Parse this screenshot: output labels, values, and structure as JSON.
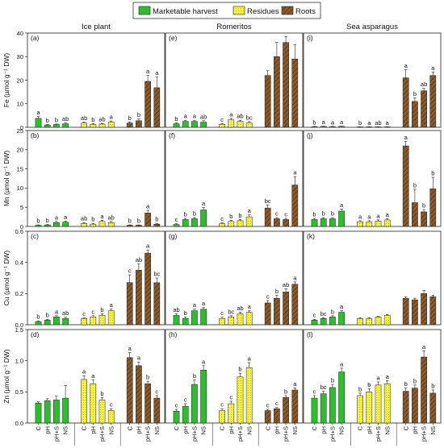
{
  "legend": [
    {
      "label": "Marketable harvest",
      "color": "#2bbf2b",
      "pattern": "solid"
    },
    {
      "label": "Residues",
      "color": "#f5f23a",
      "pattern": "dots"
    },
    {
      "label": "Roots",
      "color": "#8b5a2b",
      "pattern": "hatch"
    }
  ],
  "columns": [
    "Ice plant",
    "Romeritos",
    "Sea asparagus"
  ],
  "xcats": [
    "C",
    "pH",
    "pH+S",
    "NS"
  ],
  "chart_data": {
    "type": "bar",
    "grid": false,
    "legend_position": "top-center",
    "groups": [
      "Marketable harvest",
      "Residues",
      "Roots"
    ],
    "treatments": [
      "C",
      "pH",
      "pH+S",
      "NS"
    ],
    "rows": [
      {
        "element": "Fe",
        "ylabel": "Fe  (µmol g⁻¹ DW)",
        "ylim": [
          0,
          40
        ],
        "ticks": [
          0,
          10,
          20,
          30,
          40
        ],
        "panels": [
          {
            "tag": "(a)",
            "data": [
              {
                "values": [
                  3.8,
                  1.0,
                  1.2,
                  1.5
                ],
                "errors": [
                  0.8,
                  0.2,
                  0.2,
                  0.3
                ],
                "letters": [
                  "a",
                  "b",
                  "b",
                  "ab"
                ]
              },
              {
                "values": [
                  1.8,
                  1.3,
                  1.4,
                  2.2
                ],
                "errors": [
                  0.4,
                  0.3,
                  0.3,
                  0.5
                ],
                "letters": [
                  "ab",
                  "b",
                  "ab",
                  "a"
                ]
              },
              {
                "values": [
                  1.8,
                  2.8,
                  19.5,
                  16.8
                ],
                "errors": [
                  0.5,
                  0.8,
                  2.5,
                  4.5
                ],
                "letters": [
                  "b",
                  "b",
                  "a",
                  "a"
                ]
              }
            ]
          },
          {
            "tag": "(e)",
            "data": [
              {
                "values": [
                  1.5,
                  2.5,
                  2.5,
                  2.2
                ],
                "errors": [
                  0.4,
                  0.5,
                  0.5,
                  0.6
                ],
                "letters": [
                  "b",
                  "a",
                  "a",
                  "ab"
                ]
              },
              {
                "values": [
                  1.3,
                  3.2,
                  2.5,
                  2.0
                ],
                "errors": [
                  0.3,
                  0.6,
                  0.5,
                  0.4
                ],
                "letters": [
                  "c",
                  "a",
                  "ab",
                  "bc"
                ]
              },
              {
                "values": [
                  22.0,
                  30.0,
                  36.0,
                  29.0
                ],
                "errors": [
                  2.0,
                  6.0,
                  2.5,
                  6.0
                ],
                "letters": [
                  "",
                  "",
                  "",
                  ""
                ]
              }
            ]
          },
          {
            "tag": "(i)",
            "data": [
              {
                "values": [
                  0.3,
                  0.4,
                  0.3,
                  0.4
                ],
                "errors": [
                  0.1,
                  0.1,
                  0.1,
                  0.1
                ],
                "letters": [
                  "b",
                  "a",
                  "a",
                  "a"
                ]
              },
              {
                "values": [
                  0.2,
                  0.2,
                  0.2,
                  0.2
                ],
                "errors": [
                  0.05,
                  0.05,
                  0.05,
                  0.05
                ],
                "letters": [
                  "b",
                  "a",
                  "ab",
                  "a"
                ]
              },
              {
                "values": [
                  21.0,
                  11.0,
                  15.5,
                  22.0
                ],
                "errors": [
                  3.5,
                  1.5,
                  1.0,
                  1.5
                ],
                "letters": [
                  "a",
                  "b",
                  "ab",
                  "a"
                ]
              }
            ]
          }
        ]
      },
      {
        "element": "Mn",
        "ylabel": "Mn  (µmol g⁻¹ DW)",
        "ylim": [
          0,
          25
        ],
        "ticks": [
          0,
          5,
          10,
          15,
          20,
          25
        ],
        "panels": [
          {
            "tag": "(b)",
            "data": [
              {
                "values": [
                  0.3,
                  0.4,
                  1.0,
                  1.1
                ],
                "errors": [
                  0.1,
                  0.1,
                  0.3,
                  0.3
                ],
                "letters": [
                  "b",
                  "b",
                  "a",
                  "a"
                ]
              },
              {
                "values": [
                  0.8,
                  0.6,
                  1.3,
                  1.0
                ],
                "errors": [
                  0.2,
                  0.2,
                  0.3,
                  0.3
                ],
                "letters": [
                  "ab",
                  "b",
                  "a",
                  "ab"
                ]
              },
              {
                "values": [
                  0.3,
                  0.3,
                  3.5,
                  0.6
                ],
                "errors": [
                  0.1,
                  0.1,
                  0.7,
                  0.2
                ],
                "letters": [
                  "b",
                  "b",
                  "a",
                  "b"
                ]
              }
            ]
          },
          {
            "tag": "(f)",
            "data": [
              {
                "values": [
                  0.5,
                  1.8,
                  2.0,
                  4.3
                ],
                "errors": [
                  0.2,
                  0.3,
                  0.3,
                  0.6
                ],
                "letters": [
                  "c",
                  "b",
                  "b",
                  "a"
                ]
              },
              {
                "values": [
                  0.7,
                  1.3,
                  1.5,
                  2.5
                ],
                "errors": [
                  0.2,
                  0.3,
                  0.3,
                  0.5
                ],
                "letters": [
                  "c",
                  "b",
                  "b",
                  "a"
                ]
              },
              {
                "values": [
                  4.8,
                  2.0,
                  1.8,
                  10.8
                ],
                "errors": [
                  0.8,
                  0.3,
                  0.3,
                  2.2
                ],
                "letters": [
                  "bc",
                  "c",
                  "c",
                  "a"
                ]
              }
            ]
          },
          {
            "tag": "(j)",
            "data": [
              {
                "values": [
                  1.8,
                  2.0,
                  2.0,
                  4.0
                ],
                "errors": [
                  0.3,
                  0.3,
                  0.3,
                  0.5
                ],
                "letters": [
                  "b",
                  "b",
                  "b",
                  "a"
                ]
              },
              {
                "values": [
                  1.2,
                  1.2,
                  1.4,
                  1.7
                ],
                "errors": [
                  0.3,
                  0.3,
                  0.3,
                  0.3
                ],
                "letters": [
                  "a",
                  "a",
                  "a",
                  "a"
                ]
              },
              {
                "values": [
                  21.0,
                  6.2,
                  3.8,
                  9.8
                ],
                "errors": [
                  1.2,
                  3.5,
                  0.6,
                  3.0
                ],
                "letters": [
                  "a",
                  "b",
                  "b",
                  "b"
                ]
              }
            ]
          }
        ]
      },
      {
        "element": "Cu",
        "ylabel": "Cu  (µmol g⁻¹ DW)",
        "ylim": [
          0,
          0.6
        ],
        "ticks": [
          0.0,
          0.2,
          0.4,
          0.6
        ],
        "panels": [
          {
            "tag": "(c)",
            "data": [
              {
                "values": [
                  0.02,
                  0.03,
                  0.05,
                  0.04
                ],
                "errors": [
                  0.005,
                  0.005,
                  0.008,
                  0.008
                ],
                "letters": [
                  "b",
                  "b",
                  "a",
                  "ab"
                ]
              },
              {
                "values": [
                  0.04,
                  0.05,
                  0.06,
                  0.09
                ],
                "errors": [
                  0.005,
                  0.008,
                  0.01,
                  0.01
                ],
                "letters": [
                  "c",
                  "c",
                  "b",
                  "a"
                ]
              },
              {
                "values": [
                  0.27,
                  0.35,
                  0.46,
                  0.27
                ],
                "errors": [
                  0.05,
                  0.04,
                  0.02,
                  0.03
                ],
                "letters": [
                  "c",
                  "ab",
                  "a",
                  "bc"
                ]
              }
            ]
          },
          {
            "tag": "(g)",
            "data": [
              {
                "values": [
                  0.06,
                  0.04,
                  0.09,
                  0.1
                ],
                "errors": [
                  0.01,
                  0.01,
                  0.01,
                  0.01
                ],
                "letters": [
                  "ab",
                  "b",
                  "a",
                  "a"
                ]
              },
              {
                "values": [
                  0.04,
                  0.05,
                  0.07,
                  0.08
                ],
                "errors": [
                  0.008,
                  0.008,
                  0.01,
                  0.01
                ],
                "letters": [
                  "c",
                  "bc",
                  "ab",
                  "a"
                ]
              },
              {
                "values": [
                  0.14,
                  0.17,
                  0.21,
                  0.26
                ],
                "errors": [
                  0.015,
                  0.02,
                  0.02,
                  0.015
                ],
                "letters": [
                  "c",
                  "b",
                  "ab",
                  "a"
                ]
              }
            ]
          },
          {
            "tag": "(k)",
            "data": [
              {
                "values": [
                  0.03,
                  0.04,
                  0.05,
                  0.08
                ],
                "errors": [
                  0.005,
                  0.005,
                  0.008,
                  0.01
                ],
                "letters": [
                  "c",
                  "bc",
                  "b",
                  "a"
                ]
              },
              {
                "values": [
                  0.04,
                  0.04,
                  0.05,
                  0.06
                ],
                "errors": [
                  0.005,
                  0.005,
                  0.005,
                  0.005
                ],
                "letters": [
                  "",
                  "",
                  "",
                  ""
                ]
              },
              {
                "values": [
                  0.17,
                  0.16,
                  0.2,
                  0.18
                ],
                "errors": [
                  0.01,
                  0.01,
                  0.02,
                  0.01
                ],
                "letters": [
                  "",
                  "",
                  "",
                  ""
                ]
              }
            ]
          }
        ]
      },
      {
        "element": "Zn",
        "ylabel": "Zn  (µmol g⁻¹ DW)",
        "ylim": [
          0,
          1.5
        ],
        "ticks": [
          0.0,
          0.5,
          1.0,
          1.5
        ],
        "panels": [
          {
            "tag": "(d)",
            "data": [
              {
                "values": [
                  0.32,
                  0.36,
                  0.37,
                  0.4
                ],
                "errors": [
                  0.02,
                  0.03,
                  0.06,
                  0.2
                ],
                "letters": [
                  "",
                  "",
                  "",
                  ""
                ]
              },
              {
                "values": [
                  0.7,
                  0.63,
                  0.37,
                  0.2
                ],
                "errors": [
                  0.06,
                  0.06,
                  0.04,
                  0.03
                ],
                "letters": [
                  "a",
                  "a",
                  "b",
                  "c"
                ]
              },
              {
                "values": [
                  1.05,
                  0.92,
                  0.63,
                  0.4
                ],
                "errors": [
                  0.08,
                  0.06,
                  0.04,
                  0.04
                ],
                "letters": [
                  "a",
                  "a",
                  "b",
                  "c"
                ]
              }
            ]
          },
          {
            "tag": "(h)",
            "data": [
              {
                "values": [
                  0.19,
                  0.27,
                  0.62,
                  0.85
                ],
                "errors": [
                  0.03,
                  0.04,
                  0.07,
                  0.07
                ],
                "letters": [
                  "c",
                  "c",
                  "b",
                  "a"
                ]
              },
              {
                "values": [
                  0.2,
                  0.31,
                  0.74,
                  0.89
                ],
                "errors": [
                  0.03,
                  0.04,
                  0.06,
                  0.08
                ],
                "letters": [
                  "c",
                  "c",
                  "b",
                  "a"
                ]
              },
              {
                "values": [
                  0.2,
                  0.23,
                  0.41,
                  0.53
                ],
                "errors": [
                  0.02,
                  0.02,
                  0.03,
                  0.03
                ],
                "letters": [
                  "c",
                  "c",
                  "b",
                  "a"
                ]
              }
            ]
          },
          {
            "tag": "(l)",
            "data": [
              {
                "values": [
                  0.4,
                  0.47,
                  0.57,
                  0.82
                ],
                "errors": [
                  0.04,
                  0.04,
                  0.05,
                  0.06
                ],
                "letters": [
                  "c",
                  "bc",
                  "b",
                  "a"
                ]
              },
              {
                "values": [
                  0.44,
                  0.5,
                  0.61,
                  0.63
                ],
                "errors": [
                  0.04,
                  0.05,
                  0.05,
                  0.05
                ],
                "letters": [
                  "b",
                  "b",
                  "a",
                  "a"
                ]
              },
              {
                "values": [
                  0.51,
                  0.56,
                  1.06,
                  0.48
                ],
                "errors": [
                  0.05,
                  0.05,
                  0.1,
                  0.05
                ],
                "letters": [
                  "b",
                  "b",
                  "a",
                  "b"
                ]
              }
            ]
          }
        ]
      }
    ]
  }
}
